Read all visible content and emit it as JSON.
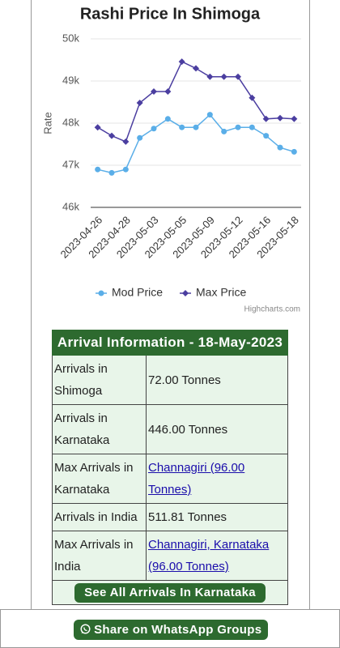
{
  "chart_data": {
    "type": "line",
    "title": "Rashi Price In Shimoga",
    "y_label": "Rate",
    "credits": "Highcharts.com",
    "categories": [
      "2023-04-26",
      null,
      "2023-04-28",
      null,
      "2023-05-03",
      null,
      "2023-05-05",
      null,
      "2023-05-09",
      null,
      "2023-05-12",
      null,
      "2023-05-16",
      null,
      "2023-05-18"
    ],
    "series": [
      {
        "name": "Mod Price",
        "color": "#5aaee8",
        "marker": "circle",
        "values": [
          46900,
          46820,
          46900,
          47650,
          47870,
          48100,
          47900,
          47900,
          48200,
          47800,
          47900,
          47900,
          47700,
          47420,
          47320
        ]
      },
      {
        "name": "Max Price",
        "color": "#4b3ea0",
        "marker": "diamond",
        "values": [
          47900,
          47700,
          47560,
          48480,
          48750,
          48750,
          49460,
          49300,
          49100,
          49100,
          49100,
          48600,
          48100,
          48120,
          48100
        ]
      }
    ],
    "ylim": [
      46000,
      50000
    ],
    "yticks": [
      {
        "value": 46000,
        "label": "46k"
      },
      {
        "value": 47000,
        "label": "47k"
      },
      {
        "value": 48000,
        "label": "48k"
      },
      {
        "value": 49000,
        "label": "49k"
      },
      {
        "value": 50000,
        "label": "50k"
      }
    ],
    "grid": true,
    "legend": "bottom"
  },
  "table": {
    "title": "Arrival Information - 18-May-2023",
    "rows": [
      [
        "Arrivals in Shimoga",
        "72.00 Tonnes"
      ],
      [
        "Arrivals in Karnataka",
        "446.00 Tonnes"
      ],
      [
        "Max Arrivals in Karnataka",
        "Channagiri (96.00 Tonnes)"
      ],
      [
        "Arrivals in India",
        "511.81 Tonnes"
      ],
      [
        "Max Arrivals in India",
        "Channagiri, Karnataka (96.00 Tonnes)"
      ]
    ],
    "button": "See All Arrivals In Karnataka"
  },
  "footer": {
    "button": "Share on WhatsApp Groups"
  }
}
